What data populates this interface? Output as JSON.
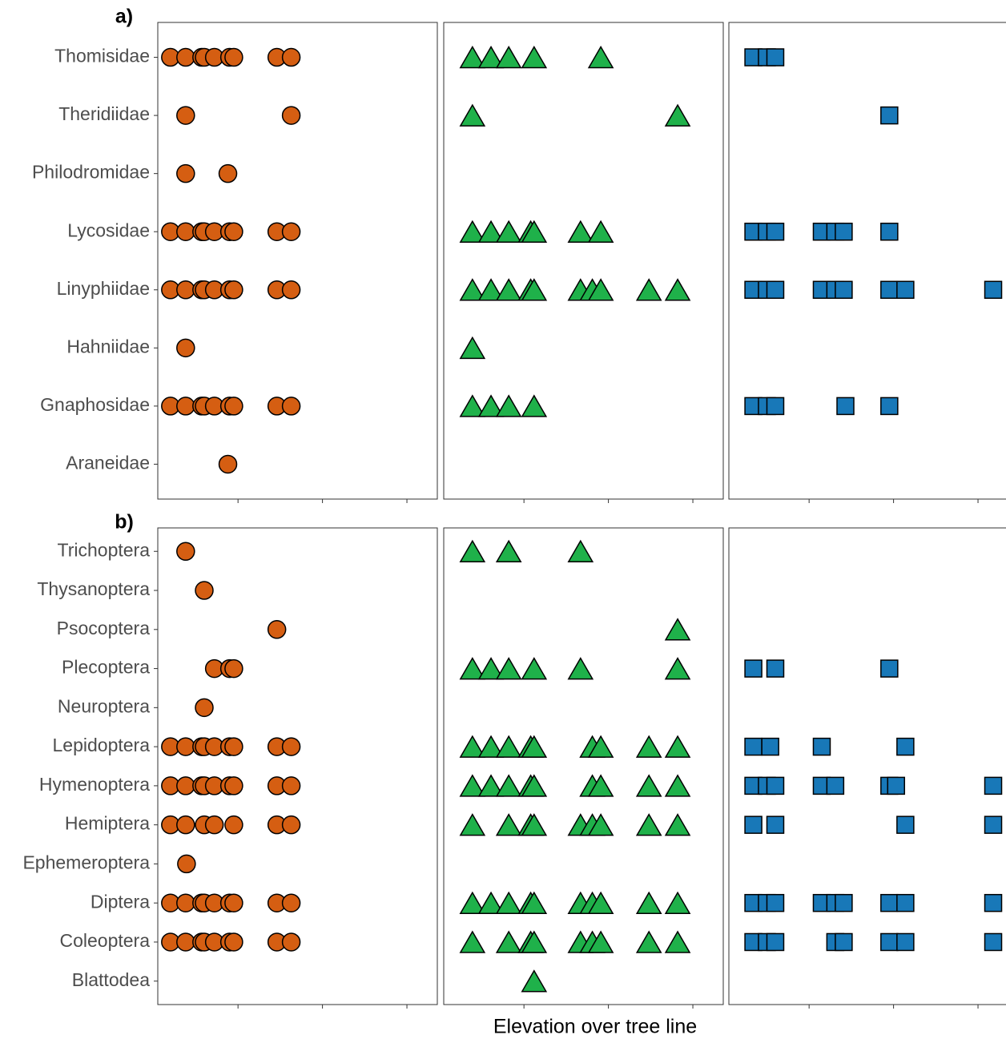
{
  "chart_data": [
    {
      "type": "dot",
      "title": "a)",
      "categories": [
        "Thomisidae",
        "Theridiidae",
        "Philodromidae",
        "Lycosidae",
        "Linyphiidae",
        "Hahniidae",
        "Gnaphosidae",
        "Araneidae"
      ],
      "xlim": [
        0.05,
        3.36
      ],
      "xticks": [
        1,
        2,
        3
      ],
      "series": [
        {
          "marker": "circle",
          "color": "#d55e12",
          "x": [
            [
              0.2,
              0.38,
              0.57,
              0.6,
              0.72,
              0.9,
              0.95,
              1.46,
              1.63
            ],
            [
              0.38,
              1.63
            ],
            [
              0.38,
              0.88
            ],
            [
              0.2,
              0.38,
              0.57,
              0.6,
              0.72,
              0.9,
              0.95,
              1.46,
              1.63
            ],
            [
              0.2,
              0.38,
              0.57,
              0.6,
              0.72,
              0.9,
              0.95,
              1.46,
              1.63
            ],
            [
              0.38
            ],
            [
              0.2,
              0.38,
              0.57,
              0.6,
              0.72,
              0.9,
              0.95,
              1.46,
              1.63
            ],
            [
              0.88
            ]
          ]
        },
        {
          "marker": "triangle",
          "color": "#1fb14a",
          "x": [
            [
              0.39,
              0.61,
              0.82,
              1.12,
              1.91
            ],
            [
              0.39,
              2.82
            ],
            [],
            [
              0.39,
              0.61,
              0.82,
              1.08,
              1.12,
              1.67,
              1.91
            ],
            [
              0.39,
              0.61,
              0.82,
              1.08,
              1.12,
              1.67,
              1.81,
              1.91,
              2.48,
              2.82
            ],
            [
              0.39
            ],
            [
              0.39,
              0.61,
              0.82,
              1.12
            ],
            []
          ]
        },
        {
          "marker": "square",
          "color": "#1878b8",
          "x": [
            [
              0.34,
              0.5,
              0.6
            ],
            [
              1.95
            ],
            [],
            [
              0.34,
              0.5,
              0.6,
              1.15,
              1.31,
              1.41,
              1.95
            ],
            [
              0.34,
              0.5,
              0.6,
              1.15,
              1.31,
              1.41,
              1.95,
              2.14,
              3.18
            ],
            [],
            [
              0.34,
              0.5,
              0.6,
              1.43,
              1.95
            ],
            []
          ]
        }
      ]
    },
    {
      "type": "dot",
      "title": "b)",
      "xlabel": "Elevation over tree line",
      "categories": [
        "Trichoptera",
        "Thysanoptera",
        "Psocoptera",
        "Plecoptera",
        "Neuroptera",
        "Lepidoptera",
        "Hymenoptera",
        "Hemiptera",
        "Ephemeroptera",
        "Diptera",
        "Coleoptera",
        "Blattodea"
      ],
      "xlim": [
        0.05,
        3.36
      ],
      "xticks": [
        1,
        2,
        3
      ],
      "series": [
        {
          "marker": "circle",
          "color": "#d55e12",
          "x": [
            [
              0.38
            ],
            [
              0.6
            ],
            [
              1.46
            ],
            [
              0.72,
              0.9,
              0.95
            ],
            [
              0.6
            ],
            [
              0.2,
              0.38,
              0.57,
              0.6,
              0.72,
              0.9,
              0.95,
              1.46,
              1.63
            ],
            [
              0.2,
              0.38,
              0.57,
              0.6,
              0.72,
              0.9,
              0.95,
              1.46,
              1.63
            ],
            [
              0.2,
              0.38,
              0.6,
              0.72,
              0.95,
              1.46,
              1.63
            ],
            [
              0.39
            ],
            [
              0.2,
              0.38,
              0.57,
              0.6,
              0.72,
              0.9,
              0.95,
              1.46,
              1.63
            ],
            [
              0.2,
              0.38,
              0.57,
              0.6,
              0.72,
              0.9,
              0.95,
              1.46,
              1.63
            ],
            []
          ]
        },
        {
          "marker": "triangle",
          "color": "#1fb14a",
          "x": [
            [
              0.39,
              0.82,
              1.67
            ],
            [],
            [
              2.82
            ],
            [
              0.39,
              0.61,
              0.82,
              1.12,
              1.67,
              2.82
            ],
            [],
            [
              0.39,
              0.61,
              0.82,
              1.08,
              1.12,
              1.81,
              1.91,
              2.48,
              2.82
            ],
            [
              0.39,
              0.61,
              0.82,
              1.08,
              1.12,
              1.81,
              1.91,
              2.48,
              2.82
            ],
            [
              0.39,
              0.82,
              1.08,
              1.12,
              1.67,
              1.81,
              1.91,
              2.48,
              2.82
            ],
            [],
            [
              0.39,
              0.61,
              0.82,
              1.08,
              1.12,
              1.67,
              1.81,
              1.91,
              2.48,
              2.82
            ],
            [
              0.39,
              0.82,
              1.08,
              1.12,
              1.67,
              1.81,
              1.91,
              2.48,
              2.82
            ],
            [
              1.12
            ]
          ]
        },
        {
          "marker": "square",
          "color": "#1878b8",
          "x": [
            [],
            [],
            [],
            [
              0.34,
              0.6,
              1.95
            ],
            [],
            [
              0.34,
              0.54,
              1.15,
              2.14
            ],
            [
              0.34,
              0.5,
              0.6,
              1.15,
              1.31,
              1.95,
              2.03,
              3.18
            ],
            [
              0.34,
              0.6,
              2.14,
              3.18
            ],
            [],
            [
              0.34,
              0.5,
              0.6,
              1.15,
              1.31,
              1.41,
              1.95,
              2.14,
              3.18
            ],
            [
              0.34,
              0.5,
              0.6,
              1.31,
              1.41,
              1.95,
              2.14,
              3.18
            ],
            []
          ]
        }
      ]
    }
  ]
}
